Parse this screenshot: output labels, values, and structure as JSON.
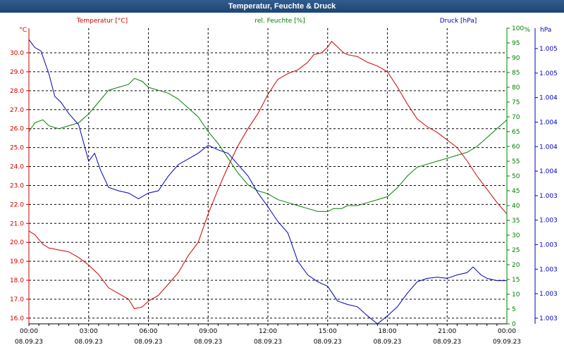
{
  "window": {
    "title": "Temperatur, Feuchte & Druck"
  },
  "colors": {
    "temperature": "#cc0000",
    "humidity": "#008000",
    "pressure": "#0000bb",
    "grid": "#000000",
    "titlebar": "#26508a"
  },
  "chart_data": {
    "type": "line",
    "title": "Temperatur, Feuchte & Druck",
    "grid": true,
    "x_ticks": [
      {
        "time": "00:00",
        "date": "08.09.23"
      },
      {
        "time": "03:00",
        "date": "08.09.23"
      },
      {
        "time": "06:00",
        "date": "08.09.23"
      },
      {
        "time": "09:00",
        "date": "08.09.23"
      },
      {
        "time": "12:00",
        "date": "08.09.23"
      },
      {
        "time": "15:00",
        "date": "08.09.23"
      },
      {
        "time": "18:00",
        "date": "08.09.23"
      },
      {
        "time": "21:00",
        "date": "08.09.23"
      },
      {
        "time": "00:00",
        "date": "09.09.23"
      }
    ],
    "x_range_hours": [
      0,
      24
    ],
    "axes": {
      "left": {
        "unit_label": "°C",
        "min": 15.7,
        "max": 31.3,
        "ticks": [
          "16.0",
          "17.0",
          "18.0",
          "19.0",
          "20.0",
          "21.0",
          "22.0",
          "23.0",
          "24.0",
          "25.0",
          "26.0",
          "27.0",
          "28.0",
          "29.0",
          "30.0"
        ]
      },
      "right": {
        "unit_label": "%",
        "min": 0,
        "max": 100,
        "ticks": [
          "0",
          "5",
          "10",
          "15",
          "20",
          "25",
          "30",
          "35",
          "40",
          "45",
          "50",
          "55",
          "60",
          "65",
          "70",
          "75",
          "80",
          "85",
          "90",
          "95",
          "100"
        ]
      },
      "far_right": {
        "unit_label": "hPa",
        "min": 1002.55,
        "max": 1005.15,
        "ticks": [
          "1.003",
          "1.003",
          "1.003",
          "1.003",
          "1.003",
          "1.003",
          "1.004",
          "1.004",
          "1.004",
          "1.004",
          "1.005",
          "1.005"
        ]
      }
    },
    "series": [
      {
        "name": "Temperatur [°C]",
        "axis": "left",
        "x": [
          0,
          0.3,
          0.7,
          1,
          1.5,
          2,
          2.5,
          3,
          3.5,
          4,
          4.5,
          5,
          5.3,
          5.7,
          6,
          6.5,
          7,
          7.5,
          8,
          8.5,
          9,
          9.5,
          10,
          10.5,
          11,
          11.5,
          12,
          12.5,
          13,
          13.5,
          14,
          14.3,
          14.7,
          15,
          15.2,
          15.5,
          15.8,
          16,
          16.5,
          17,
          17.5,
          18,
          18.5,
          19,
          19.5,
          20,
          20.5,
          21,
          21.5,
          22,
          22.5,
          23,
          23.5,
          24
        ],
        "values": [
          20.6,
          20.4,
          19.9,
          19.7,
          19.6,
          19.5,
          19.2,
          18.8,
          18.3,
          17.6,
          17.3,
          17.0,
          16.5,
          16.6,
          16.9,
          17.2,
          17.8,
          18.4,
          19.3,
          20.0,
          21.5,
          22.8,
          24.0,
          25.1,
          26.0,
          26.8,
          27.8,
          28.6,
          28.9,
          29.1,
          29.5,
          29.9,
          30.0,
          30.3,
          30.6,
          30.3,
          30.0,
          29.9,
          29.8,
          29.5,
          29.3,
          29.0,
          28.2,
          27.3,
          26.5,
          26.1,
          25.8,
          25.4,
          25.0,
          24.3,
          23.5,
          22.8,
          22.1,
          21.5
        ]
      },
      {
        "name": "rel. Feuchte [%]",
        "axis": "right",
        "x": [
          0,
          0.3,
          0.7,
          1,
          1.5,
          2,
          2.5,
          3,
          3.5,
          4,
          4.5,
          5,
          5.3,
          5.7,
          6,
          6.5,
          7,
          7.5,
          8,
          8.5,
          9,
          9.5,
          10,
          10.5,
          11,
          11.5,
          12,
          12.5,
          13,
          13.5,
          14,
          14.5,
          15,
          15.3,
          15.7,
          16,
          16.5,
          17,
          17.5,
          18,
          18.5,
          19,
          19.5,
          20,
          20.5,
          21,
          21.5,
          22,
          22.5,
          23,
          23.5,
          24
        ],
        "values": [
          65,
          68,
          69,
          67,
          66,
          67,
          68,
          71,
          75,
          79,
          80,
          81,
          83,
          82,
          80,
          79,
          78,
          76,
          73,
          70,
          65,
          61,
          56,
          51,
          47,
          45,
          44,
          42,
          41,
          40,
          39,
          38,
          38,
          39,
          39,
          40,
          40,
          41,
          42,
          43,
          46,
          50,
          53,
          54,
          55,
          56,
          57,
          58,
          60,
          63,
          66,
          69
        ]
      },
      {
        "name": "Druck [hPa]",
        "axis": "far_right",
        "x": [
          0,
          0.3,
          0.6,
          1,
          1.3,
          1.6,
          2,
          2.5,
          3,
          3.3,
          3.6,
          4,
          4.5,
          5,
          5.5,
          6,
          6.5,
          7,
          7.5,
          8,
          8.5,
          9,
          9.5,
          10,
          10.5,
          11,
          11.5,
          12,
          12.5,
          13,
          13.5,
          14,
          14.5,
          15,
          15.5,
          16,
          16.5,
          17,
          17.5,
          18,
          18.5,
          19,
          19.5,
          20,
          20.5,
          21,
          21.5,
          22,
          22.3,
          22.7,
          23,
          23.5,
          24
        ],
        "values": [
          1005.05,
          1004.98,
          1004.95,
          1004.75,
          1004.55,
          1004.5,
          1004.4,
          1004.3,
          1003.98,
          1004.05,
          1003.9,
          1003.75,
          1003.72,
          1003.7,
          1003.65,
          1003.7,
          1003.72,
          1003.85,
          1003.95,
          1004.0,
          1004.05,
          1004.12,
          1004.08,
          1004.05,
          1003.95,
          1003.85,
          1003.7,
          1003.58,
          1003.45,
          1003.35,
          1003.1,
          1002.98,
          1002.92,
          1002.88,
          1002.75,
          1002.72,
          1002.7,
          1002.62,
          1002.55,
          1002.62,
          1002.7,
          1002.82,
          1002.92,
          1002.95,
          1002.96,
          1002.95,
          1002.98,
          1003.0,
          1003.05,
          1002.98,
          1002.95,
          1002.93,
          1002.93
        ]
      }
    ]
  }
}
